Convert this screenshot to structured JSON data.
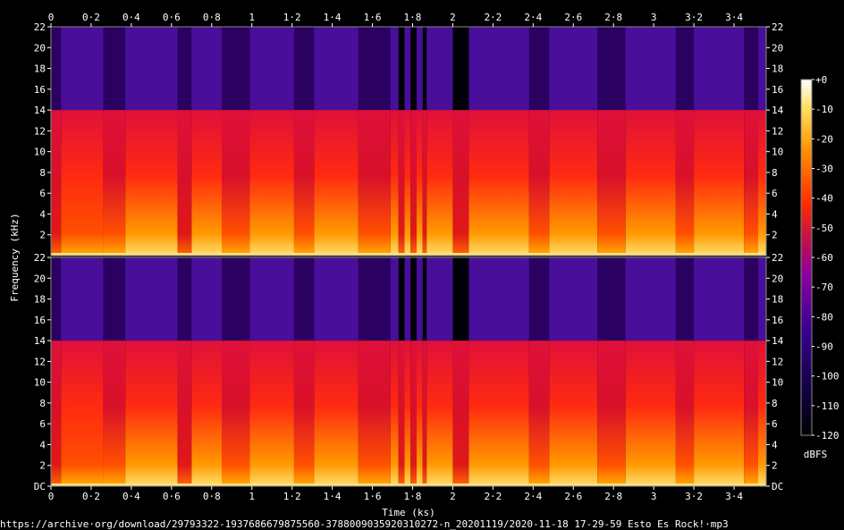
{
  "chart_data": {
    "type": "heatmap",
    "subtype": "spectrogram",
    "channels": 2,
    "xlabel": "Time (ks)",
    "ylabel": "Frequency (kHz)",
    "x_ticks": [
      "0",
      "0·2",
      "0·4",
      "0·6",
      "0·8",
      "1",
      "1·2",
      "1·4",
      "1·6",
      "1·8",
      "2",
      "2·2",
      "2·4",
      "2·6",
      "2·8",
      "3",
      "3·2",
      "3·4"
    ],
    "x_range": [
      0,
      3.56
    ],
    "y_range": [
      0,
      22
    ],
    "y_ticks_top_channel": [
      "22",
      "20",
      "18",
      "16",
      "14",
      "12",
      "10",
      "8",
      "6",
      "4",
      "2"
    ],
    "y_ticks_bottom_channel": [
      "22",
      "20",
      "18",
      "16",
      "14",
      "12",
      "10",
      "8",
      "6",
      "4",
      "2",
      "DC"
    ],
    "lowpass_cutoff_khz": 14,
    "colorbar": {
      "label": "dBFS",
      "ticks": [
        "+0",
        "-10",
        "-20",
        "-30",
        "-40",
        "-50",
        "-60",
        "-70",
        "-80",
        "-90",
        "-100",
        "-110",
        "-120"
      ],
      "range": [
        -120,
        0
      ]
    },
    "segments_ks": [
      {
        "start": 0.0,
        "end": 0.05,
        "level": 0.45
      },
      {
        "start": 0.05,
        "end": 0.26,
        "level": 0.7
      },
      {
        "start": 0.26,
        "end": 0.37,
        "level": 0.55
      },
      {
        "start": 0.37,
        "end": 0.63,
        "level": 0.8
      },
      {
        "start": 0.63,
        "end": 0.7,
        "level": 0.5
      },
      {
        "start": 0.7,
        "end": 0.85,
        "level": 0.75
      },
      {
        "start": 0.85,
        "end": 0.99,
        "level": 0.55
      },
      {
        "start": 0.99,
        "end": 1.21,
        "level": 0.8
      },
      {
        "start": 1.21,
        "end": 1.31,
        "level": 0.55
      },
      {
        "start": 1.31,
        "end": 1.53,
        "level": 0.82
      },
      {
        "start": 1.53,
        "end": 1.69,
        "level": 0.55
      },
      {
        "start": 1.69,
        "end": 1.73,
        "level": 0.75
      },
      {
        "start": 1.73,
        "end": 1.76,
        "level": 0.3
      },
      {
        "start": 1.76,
        "end": 1.79,
        "level": 0.8
      },
      {
        "start": 1.79,
        "end": 1.82,
        "level": 0.3
      },
      {
        "start": 1.82,
        "end": 1.85,
        "level": 0.8
      },
      {
        "start": 1.85,
        "end": 1.87,
        "level": 0.3
      },
      {
        "start": 1.87,
        "end": 2.0,
        "level": 0.78
      },
      {
        "start": 2.0,
        "end": 2.08,
        "level": 0.2
      },
      {
        "start": 2.08,
        "end": 2.38,
        "level": 0.72
      },
      {
        "start": 2.38,
        "end": 2.48,
        "level": 0.55
      },
      {
        "start": 2.48,
        "end": 2.72,
        "level": 0.8
      },
      {
        "start": 2.72,
        "end": 2.86,
        "level": 0.55
      },
      {
        "start": 2.86,
        "end": 3.11,
        "level": 0.8
      },
      {
        "start": 3.11,
        "end": 3.2,
        "level": 0.55
      },
      {
        "start": 3.2,
        "end": 3.45,
        "level": 0.8
      },
      {
        "start": 3.45,
        "end": 3.52,
        "level": 0.55
      },
      {
        "start": 3.52,
        "end": 3.56,
        "level": 0.75
      }
    ],
    "grid": false,
    "legend": "right"
  },
  "footer": {
    "path": "https://archive·org/download/29793322-1937686679875560-3788009035920310272-n_20201119/2020-11-18 17-29-59 Esto Es Rock!·mp3"
  }
}
